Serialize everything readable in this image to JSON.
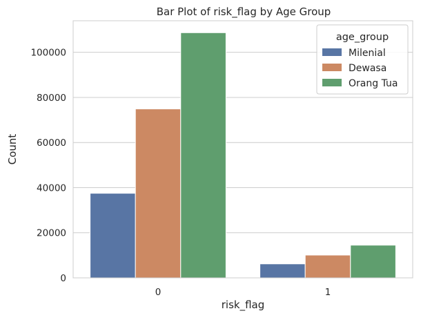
{
  "chart_data": {
    "type": "bar",
    "title": "Bar Plot of risk_flag by Age Group",
    "xlabel": "risk_flag",
    "ylabel": "Count",
    "categories": [
      "0",
      "1"
    ],
    "series": [
      {
        "name": "Milenial",
        "values": [
          37500,
          6200
        ],
        "color": "#5875a4"
      },
      {
        "name": "Dewasa",
        "values": [
          74900,
          10100
        ],
        "color": "#cc8963"
      },
      {
        "name": "Orang Tua",
        "values": [
          108700,
          14500
        ],
        "color": "#5f9e6e"
      }
    ],
    "ylim": [
      0,
      114000
    ],
    "yticks": [
      0,
      20000,
      40000,
      60000,
      80000,
      100000
    ],
    "legend_title": "age_group",
    "legend_position": "top-right",
    "grid": "y"
  }
}
